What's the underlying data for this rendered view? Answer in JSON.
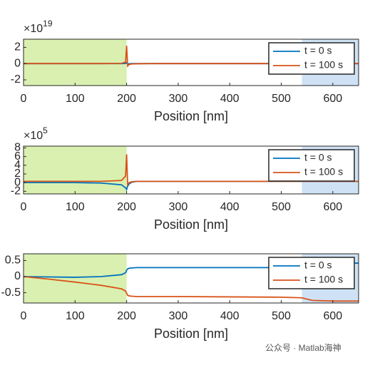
{
  "chart_data": [
    {
      "type": "line",
      "xlabel": "Position [nm]",
      "x": [
        0,
        50,
        100,
        150,
        190,
        198,
        200,
        202,
        205,
        210,
        220,
        250,
        300,
        400,
        500,
        540,
        560,
        600,
        650
      ],
      "xlim": [
        0,
        650
      ],
      "xticks": [
        0,
        100,
        200,
        300,
        400,
        500,
        600
      ],
      "ylim": [
        -2.7,
        3
      ],
      "yticks": [
        -2,
        0,
        2
      ],
      "y_exponent": {
        "base": "×10",
        "power": "19"
      },
      "regions": [
        {
          "start": 0,
          "end": 200,
          "color": "#d9f0b0"
        },
        {
          "start": 540,
          "end": 650,
          "color": "#cfe2f5"
        }
      ],
      "legend": "upper right",
      "series": [
        {
          "name": "t = 0 s",
          "color": "#0072bd",
          "values": [
            0,
            0,
            0,
            0,
            0,
            0.02,
            0.1,
            -0.05,
            -0.02,
            0,
            0,
            0,
            0,
            0,
            0,
            0,
            0,
            0,
            0
          ]
        },
        {
          "name": "t = 100 s",
          "color": "#d95319",
          "values": [
            0,
            0,
            0,
            0,
            0.02,
            0.2,
            2.2,
            -0.3,
            -0.1,
            -0.05,
            -0.02,
            0,
            0,
            0,
            0,
            0,
            0,
            0,
            0
          ]
        }
      ]
    },
    {
      "type": "line",
      "xlabel": "Position [nm]",
      "x": [
        0,
        50,
        100,
        150,
        190,
        198,
        200,
        202,
        205,
        210,
        220,
        250,
        300,
        400,
        500,
        540,
        560,
        600,
        650
      ],
      "xlim": [
        0,
        650
      ],
      "xticks": [
        0,
        100,
        200,
        300,
        400,
        500,
        600
      ],
      "ylim": [
        -2.6,
        8.4
      ],
      "yticks": [
        -2,
        0,
        2,
        4,
        6,
        8
      ],
      "y_exponent": {
        "base": "×10",
        "power": "5"
      },
      "regions": [
        {
          "start": 0,
          "end": 200,
          "color": "#d9f0b0"
        },
        {
          "start": 540,
          "end": 650,
          "color": "#cfe2f5"
        }
      ],
      "legend": "upper right",
      "series": [
        {
          "name": "t = 0 s",
          "color": "#0072bd",
          "values": [
            0,
            0,
            0,
            -0.1,
            -0.5,
            -1.2,
            -1.6,
            -0.8,
            -0.3,
            0.1,
            0.3,
            0.3,
            0.3,
            0.3,
            0.3,
            0.3,
            0.3,
            0.3,
            0.3
          ]
        },
        {
          "name": "t = 100 s",
          "color": "#d95319",
          "values": [
            0.3,
            0.3,
            0.3,
            0.3,
            0.5,
            1.5,
            6.5,
            -0.5,
            0,
            0.2,
            0.3,
            0.3,
            0.3,
            0.3,
            0.3,
            0.3,
            0.3,
            0.3,
            0.3
          ]
        }
      ]
    },
    {
      "type": "line",
      "xlabel": "Position [nm]",
      "x": [
        0,
        50,
        100,
        150,
        190,
        198,
        200,
        202,
        205,
        210,
        220,
        250,
        300,
        400,
        500,
        540,
        560,
        600,
        650
      ],
      "xlim": [
        0,
        650
      ],
      "xticks": [
        0,
        100,
        200,
        300,
        400,
        500,
        600
      ],
      "ylim": [
        -0.82,
        0.71
      ],
      "yticks": [
        -0.5,
        0,
        0.5
      ],
      "regions": [
        {
          "start": 0,
          "end": 200,
          "color": "#d9f0b0"
        },
        {
          "start": 540,
          "end": 650,
          "color": "#cfe2f5"
        }
      ],
      "legend": "upper right",
      "series": [
        {
          "name": "t = 0 s",
          "color": "#0072bd",
          "values": [
            0,
            -0.01,
            -0.02,
            0,
            0.06,
            0.12,
            0.2,
            0.24,
            0.26,
            0.27,
            0.28,
            0.28,
            0.28,
            0.28,
            0.28,
            0.3,
            0.4,
            0.42,
            0.42
          ]
        },
        {
          "name": "t = 100 s",
          "color": "#d95319",
          "values": [
            0,
            -0.08,
            -0.17,
            -0.27,
            -0.38,
            -0.45,
            -0.52,
            -0.58,
            -0.6,
            -0.61,
            -0.62,
            -0.62,
            -0.62,
            -0.63,
            -0.64,
            -0.66,
            -0.74,
            -0.76,
            -0.76
          ]
        }
      ]
    }
  ],
  "watermark": "公众号 · Matlab海神"
}
